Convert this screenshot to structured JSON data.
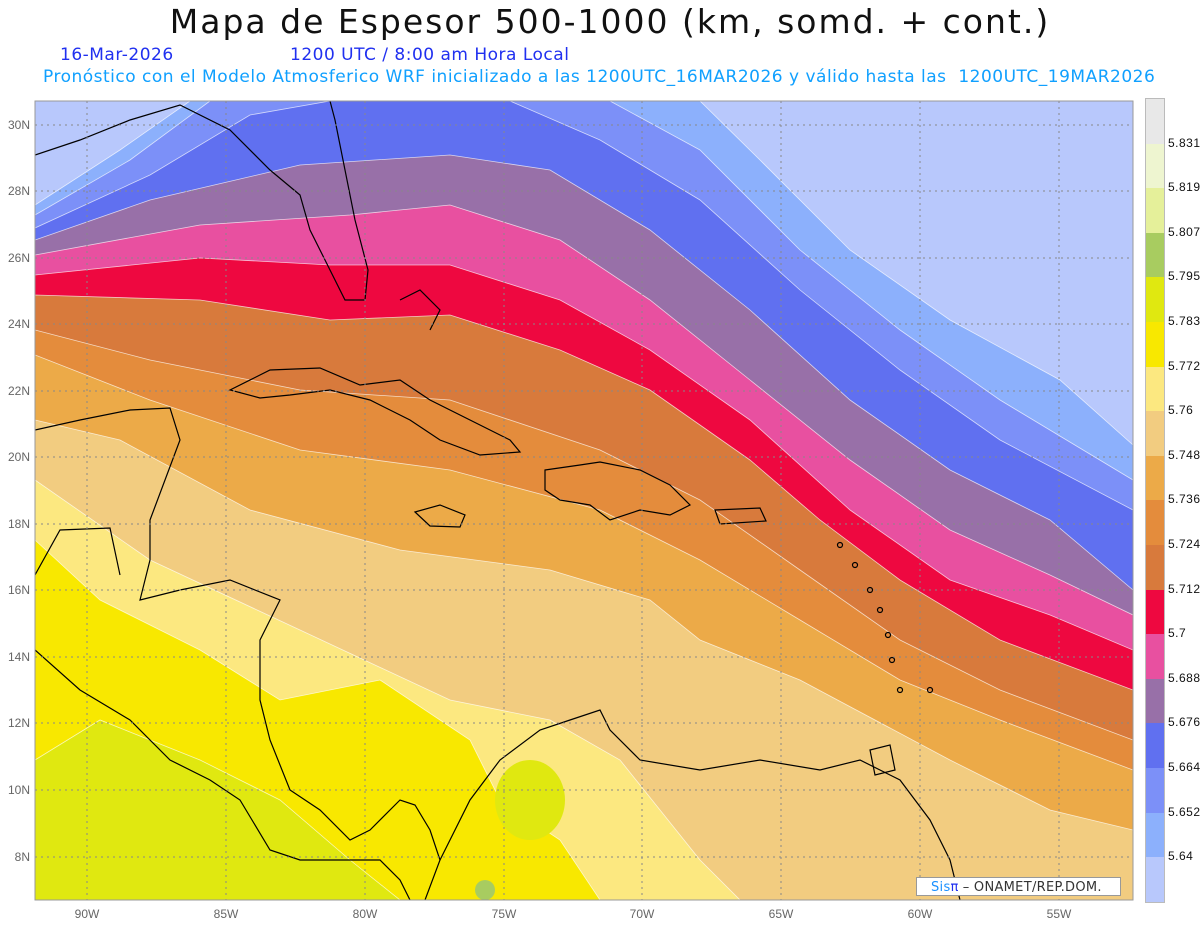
{
  "header": {
    "title": "Mapa de Espesor 500-1000 (km, somd. + cont.)",
    "date": "16-Mar-2026",
    "time": "1200 UTC / 8:00 am Hora Local",
    "description": "Pronóstico con el Modelo Atmosferico WRF inicializado a las 1200UTC_16MAR2026 y válido hasta las  1200UTC_19MAR2026"
  },
  "axes": {
    "lat_labels": [
      "30N",
      "28N",
      "26N",
      "24N",
      "22N",
      "20N",
      "18N",
      "16N",
      "14N",
      "12N",
      "10N",
      "8N"
    ],
    "lon_labels": [
      "90W",
      "85W",
      "80W",
      "75W",
      "70W",
      "65W",
      "60W",
      "55W"
    ]
  },
  "colorbar": {
    "labels": [
      "5.831",
      "5.819",
      "5.807",
      "5.795",
      "5.783",
      "5.772",
      "5.76",
      "5.748",
      "5.736",
      "5.724",
      "5.712",
      "5.7",
      "5.688",
      "5.676",
      "5.664",
      "5.652",
      "5.64"
    ],
    "colors": [
      "#e8e8e8",
      "#eef5d0",
      "#e5f09a",
      "#a8cc60",
      "#e0e810",
      "#f8e800",
      "#fce880",
      "#f2cc80",
      "#ecaa48",
      "#e48c3c",
      "#d87a3c",
      "#ee0840",
      "#e850a0",
      "#9870a8",
      "#6070f0",
      "#7c90f8",
      "#8cb0fc",
      "#b8c8fc"
    ]
  },
  "credit": {
    "brand": "Sis",
    "symbol": "π",
    "text": "– ONAMET/REP.DOM."
  }
}
